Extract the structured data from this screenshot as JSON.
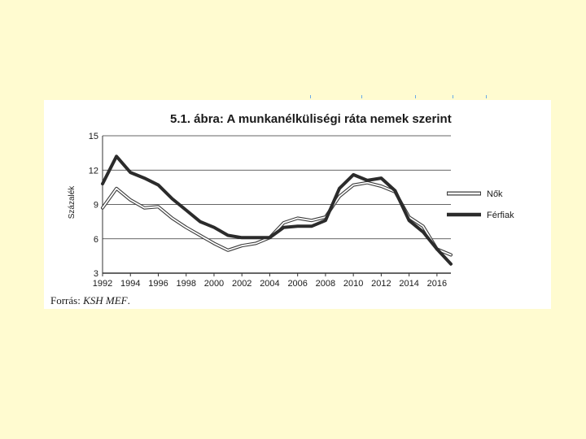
{
  "colors": {
    "page_background": "#fffbd0",
    "panel_background": "#ffffff",
    "women_series": "#ffffff",
    "women_outline": "#3c3c3c",
    "men_series": "#2b2b2b",
    "grid": "#333333"
  },
  "source": {
    "prefix": "Forrás:",
    "name": "KSH MEF",
    "suffix": "."
  },
  "chart_data": {
    "type": "line",
    "title": "5.1. ábra: A munkanélküliségi ráta nemek szerint",
    "xlabel": "",
    "ylabel": "Százalék",
    "ylim": [
      3,
      15
    ],
    "yticks": [
      3,
      6,
      9,
      12,
      15
    ],
    "xlim": [
      1992,
      2017
    ],
    "xticks": [
      1992,
      1994,
      1996,
      1998,
      2000,
      2002,
      2004,
      2006,
      2008,
      2010,
      2012,
      2014,
      2016
    ],
    "grid": "horizontal",
    "legend_position": "right",
    "x": [
      1992,
      1993,
      1994,
      1995,
      1996,
      1997,
      1998,
      1999,
      2000,
      2001,
      2002,
      2003,
      2004,
      2005,
      2006,
      2007,
      2008,
      2009,
      2010,
      2011,
      2012,
      2013,
      2014,
      2015,
      2016,
      2017
    ],
    "series": [
      {
        "name": "Nők",
        "style": "outline",
        "values": [
          8.7,
          10.4,
          9.4,
          8.7,
          8.8,
          7.8,
          7.0,
          6.3,
          5.6,
          5.0,
          5.4,
          5.6,
          6.1,
          7.4,
          7.8,
          7.6,
          7.9,
          9.7,
          10.7,
          10.9,
          10.6,
          10.1,
          7.9,
          7.1,
          5.1,
          4.6
        ]
      },
      {
        "name": "Férfiak",
        "style": "bold",
        "values": [
          10.8,
          13.2,
          11.8,
          11.3,
          10.7,
          9.5,
          8.5,
          7.5,
          7.0,
          6.3,
          6.1,
          6.1,
          6.1,
          7.0,
          7.1,
          7.1,
          7.6,
          10.4,
          11.6,
          11.1,
          11.3,
          10.2,
          7.6,
          6.6,
          5.1,
          3.8
        ]
      }
    ]
  }
}
